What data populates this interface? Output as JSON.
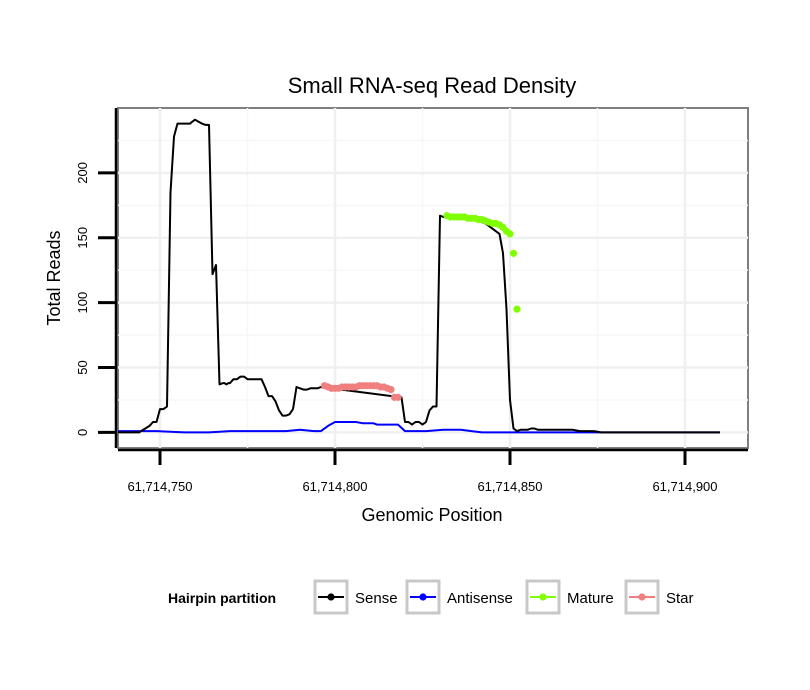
{
  "chart_data": {
    "type": "line",
    "title": "Small RNA-seq Read Density",
    "xlabel": "Genomic Position",
    "ylabel": "Total Reads",
    "xlim": [
      61714738,
      61714918
    ],
    "ylim": [
      -12,
      250
    ],
    "x_ticks": [
      61714750,
      61714800,
      61714850,
      61714900
    ],
    "x_tick_labels": [
      "61,714,750",
      "61,714,800",
      "61,714,850",
      "61,714,900"
    ],
    "y_ticks": [
      0,
      50,
      100,
      150,
      200
    ],
    "y_tick_labels": [
      "0",
      "50",
      "100",
      "150",
      "200"
    ],
    "legend": {
      "title": "Hairpin partition",
      "position": "bottom",
      "items": [
        {
          "label": "Sense",
          "color": "#000000"
        },
        {
          "label": "Antisense",
          "color": "#0000ff"
        },
        {
          "label": "Mature",
          "color": "#7fff00"
        },
        {
          "label": "Star",
          "color": "#f08080"
        }
      ]
    },
    "series": [
      {
        "name": "Sense",
        "color": "#000000",
        "x": [
          61714738,
          61714744,
          61714747,
          61714748,
          61714749,
          61714750,
          61714751,
          61714752,
          61714753,
          61714754,
          61714755,
          61714756,
          61714757,
          61714758,
          61714758.6,
          61714759,
          61714760,
          61714762,
          61714763,
          61714764,
          61714765,
          61714766,
          61714767,
          61714768,
          61714768.4,
          61714769,
          61714769.5,
          61714770,
          61714771,
          61714772,
          61714773,
          61714774,
          61714775,
          61714776,
          61714777,
          61714778,
          61714779,
          61714780,
          61714781,
          61714782,
          61714783,
          61714784,
          61714785,
          61714786,
          61714787,
          61714788,
          61714789,
          61714790,
          61714791,
          61714792,
          61714793,
          61714794,
          61714795,
          61714796,
          61714819,
          61714820,
          61714821,
          61714822,
          61714823,
          61714824,
          61714825,
          61714826,
          61714827,
          61714828,
          61714829,
          61714830,
          61714831,
          61714833,
          61714834,
          61714835,
          61714836,
          61714837,
          61714838,
          61714839,
          61714840,
          61714841,
          61714842,
          61714843,
          61714844,
          61714845,
          61714846,
          61714847,
          61714848,
          61714849,
          61714850,
          61714851,
          61714852,
          61714853,
          61714854,
          61714855,
          61714856,
          61714857,
          61714858,
          61714859,
          61714860,
          61714862,
          61714864,
          61714866,
          61714868,
          61714870,
          61714872,
          61714874,
          61714876,
          61714878,
          61714880,
          61714882,
          61714885,
          61714890,
          61714900,
          61714910
        ],
        "values": [
          0,
          0,
          5,
          8,
          8,
          18,
          18,
          20,
          185,
          228,
          238,
          238,
          238,
          238,
          238,
          239,
          241,
          238,
          237,
          237,
          122,
          129,
          37,
          38,
          38,
          37,
          38,
          38,
          41,
          41,
          43,
          43,
          41,
          41,
          41,
          41,
          41,
          35,
          28,
          28,
          24,
          17,
          13,
          13,
          14,
          18,
          35,
          34,
          33,
          33,
          34,
          34,
          34,
          35,
          27,
          8,
          8,
          6,
          8,
          8,
          6,
          8,
          17,
          20,
          20,
          167,
          166,
          166,
          166,
          166,
          165,
          165,
          165,
          164,
          164,
          163,
          162,
          161,
          159,
          157,
          155,
          153,
          138,
          95,
          25,
          3,
          1,
          2,
          2,
          2,
          3,
          3,
          2,
          2,
          2,
          2,
          2,
          2,
          2,
          1,
          1,
          1,
          0,
          0,
          0,
          0,
          0,
          0,
          0,
          0
        ]
      },
      {
        "name": "Antisense",
        "color": "#0000ff",
        "x": [
          61714738,
          61714747,
          61714749,
          61714757,
          61714764,
          61714770,
          61714780,
          61714783,
          61714786,
          61714790,
          61714794,
          61714796,
          61714798,
          61714800,
          61714806,
          61714808,
          61714811,
          61714812,
          61714814,
          61714818,
          61714820,
          61714823,
          61714826,
          61714831,
          61714836,
          61714839,
          61714842,
          61714848,
          61714852,
          61714860,
          61714910
        ],
        "values": [
          1,
          1,
          1,
          0,
          0,
          1,
          1,
          1,
          1,
          2,
          1,
          1,
          5,
          8,
          8,
          7,
          7,
          6,
          6,
          6,
          1,
          1,
          1,
          2,
          2,
          1,
          0,
          0,
          0,
          0,
          0
        ]
      },
      {
        "name": "Mature",
        "color": "#7fff00",
        "x": [
          61714832,
          61714833,
          61714834,
          61714835,
          61714836,
          61714837,
          61714838,
          61714839,
          61714840,
          61714841,
          61714842,
          61714843,
          61714844,
          61714845,
          61714846,
          61714847,
          61714848,
          61714849,
          61714850,
          61714851,
          61714852
        ],
        "values": [
          167,
          166,
          166,
          166,
          166,
          166,
          165,
          165,
          165,
          164,
          164,
          163,
          162,
          161,
          161,
          160,
          158,
          155,
          153,
          138,
          95
        ]
      },
      {
        "name": "Star",
        "color": "#f08080",
        "x": [
          61714797,
          61714798,
          61714799,
          61714800,
          61714801,
          61714802,
          61714803,
          61714804,
          61714805,
          61714806,
          61714807,
          61714808,
          61714809,
          61714810,
          61714811,
          61714812,
          61714813,
          61714814,
          61714815,
          61714816,
          61714817,
          61714818
        ],
        "values": [
          36,
          35,
          34,
          34,
          34,
          35,
          35,
          35,
          35,
          35,
          36,
          36,
          36,
          36,
          36,
          36,
          35,
          35,
          34,
          33,
          27,
          27
        ]
      }
    ]
  }
}
